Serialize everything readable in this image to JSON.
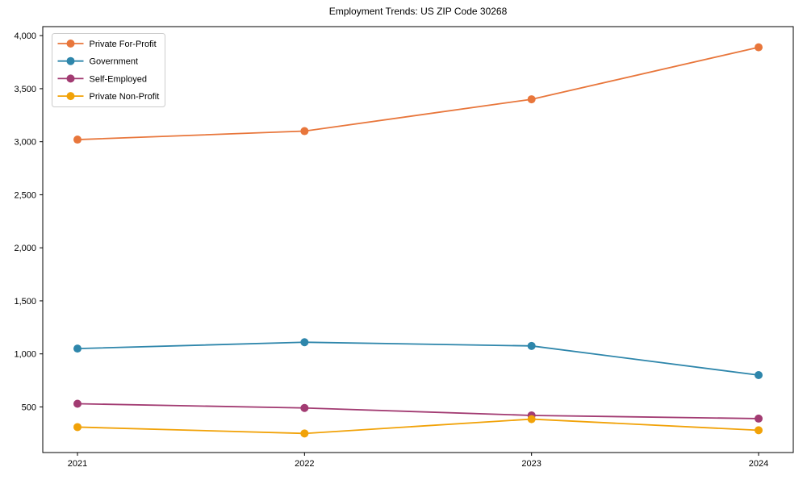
{
  "chart_data": {
    "type": "line",
    "title": "Employment Trends: US ZIP Code 30268",
    "xlabel": "",
    "ylabel": "",
    "x": [
      "2021",
      "2022",
      "2023",
      "2024"
    ],
    "ylim": [
      70,
      4085
    ],
    "yticks": [
      500,
      1000,
      1500,
      2000,
      2500,
      3000,
      3500,
      4000
    ],
    "grid": false,
    "legend_position": "upper-left",
    "marker": "circle",
    "series": [
      {
        "name": "Private For-Profit",
        "color": "#E8763B",
        "values": [
          3020,
          3100,
          3400,
          3890
        ]
      },
      {
        "name": "Government",
        "color": "#2E86AB",
        "values": [
          1050,
          1110,
          1075,
          800
        ]
      },
      {
        "name": "Self-Employed",
        "color": "#A23B72",
        "values": [
          530,
          490,
          420,
          390
        ]
      },
      {
        "name": "Private Non-Profit",
        "color": "#F1A208",
        "values": [
          310,
          250,
          385,
          280
        ]
      }
    ]
  }
}
